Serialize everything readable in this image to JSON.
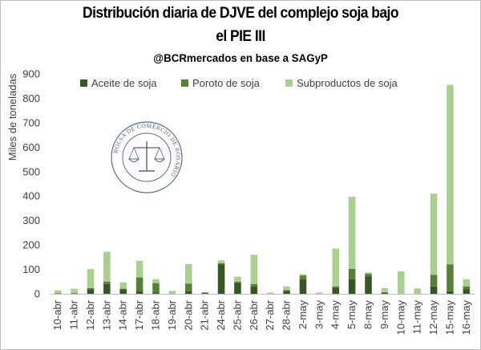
{
  "title_line1": "Distribución diaria de DJVE del complejo soja bajo",
  "title_line2": "el PIE III",
  "subtitle": "@BCRmercados en base a SAGyP",
  "watermark": {
    "text": "BOLSA DE COMERCIO DE ROSARIO",
    "color": "#2b3a66"
  },
  "colors": {
    "aceite": "#375623",
    "poroto": "#548235",
    "subproductos": "#a9d08e",
    "grid": "#d9d9d9",
    "axis": "#bfbfbf"
  },
  "chart_data": {
    "type": "bar",
    "stacked": true,
    "ylabel": "Miles de toneladas",
    "ylim": [
      0,
      900
    ],
    "yticks": [
      0,
      100,
      200,
      300,
      400,
      500,
      600,
      700,
      800,
      900
    ],
    "grid": false,
    "legend_position": "top",
    "categories": [
      "10-abr",
      "11-abr",
      "12-abr",
      "13-abr",
      "14-abr",
      "17-abr",
      "18-abr",
      "19-abr",
      "20-abr",
      "21-abr",
      "24-abr",
      "25-abr",
      "26-abr",
      "27-abr",
      "28-abr",
      "2-may",
      "3-may",
      "4-may",
      "5-may",
      "8-may",
      "9-may",
      "10-may",
      "11-may",
      "12-may",
      "15-may",
      "16-may"
    ],
    "series": [
      {
        "name": "Aceite de soja",
        "color": "#375623",
        "values": [
          0,
          0,
          18,
          40,
          18,
          12,
          6,
          0,
          10,
          5,
          120,
          45,
          30,
          0,
          12,
          60,
          0,
          25,
          60,
          72,
          5,
          0,
          0,
          30,
          10,
          18
        ]
      },
      {
        "name": "Poroto de soja",
        "color": "#548235",
        "values": [
          2,
          3,
          5,
          10,
          3,
          55,
          38,
          0,
          32,
          0,
          5,
          5,
          10,
          0,
          3,
          15,
          0,
          5,
          42,
          10,
          0,
          0,
          0,
          48,
          110,
          12
        ]
      },
      {
        "name": "Subproductos de soja",
        "color": "#a9d08e",
        "values": [
          12,
          18,
          78,
          122,
          26,
          68,
          16,
          12,
          80,
          0,
          12,
          20,
          120,
          5,
          15,
          5,
          5,
          155,
          295,
          5,
          18,
          92,
          22,
          332,
          735,
          30
        ]
      }
    ]
  }
}
